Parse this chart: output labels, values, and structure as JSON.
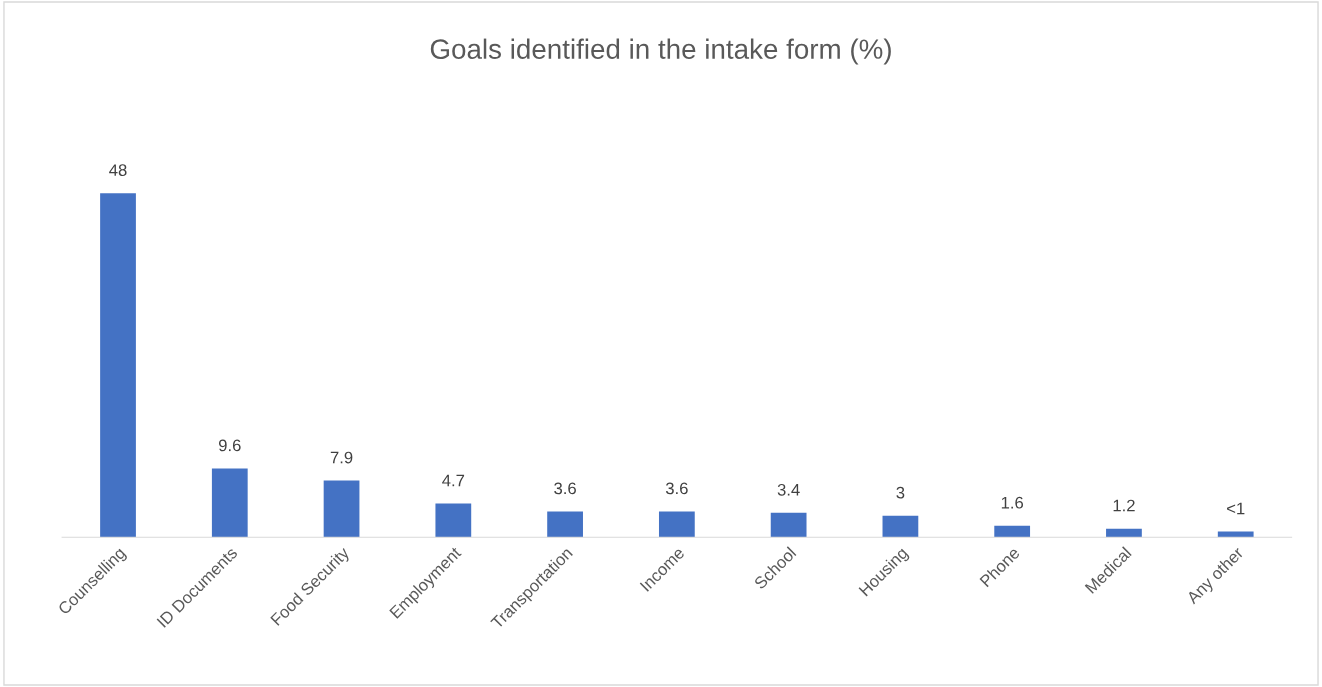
{
  "chart_data": {
    "type": "bar",
    "title": "Goals identified in the intake form (%)",
    "categories": [
      "Counselling",
      "ID Documents",
      "Food Security",
      "Employment",
      "Transportation",
      "Income",
      "School",
      "Housing",
      "Phone",
      "Medical",
      "Any other"
    ],
    "values": [
      48,
      9.6,
      7.9,
      4.7,
      3.6,
      3.6,
      3.4,
      3,
      1.6,
      1.2,
      0.8
    ],
    "value_labels": [
      "48",
      "9.6",
      "7.9",
      "4.7",
      "3.6",
      "3.6",
      "3.4",
      "3",
      "1.6",
      "1.2",
      "<1"
    ],
    "color": "#4472c4",
    "grid": false,
    "legend": false
  }
}
